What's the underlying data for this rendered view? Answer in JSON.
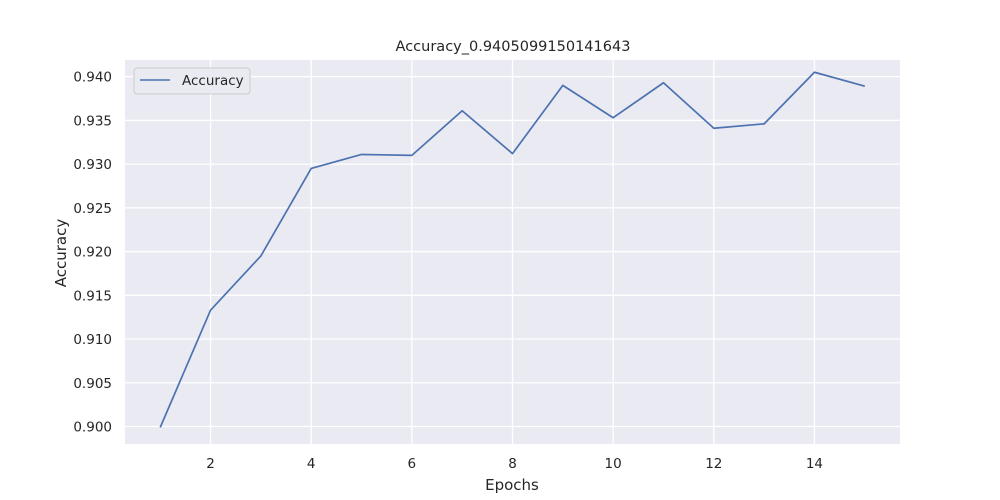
{
  "chart_data": {
    "type": "line",
    "title": "Accuracy_0.9405099150141643",
    "xlabel": "Epochs",
    "ylabel": "Accuracy",
    "xlim": [
      0.3,
      15.7
    ],
    "ylim": [
      0.898,
      0.9419
    ],
    "xticks": [
      2,
      4,
      6,
      8,
      10,
      12,
      14
    ],
    "xtick_labels": [
      "2",
      "4",
      "6",
      "8",
      "10",
      "12",
      "14"
    ],
    "yticks": [
      0.9,
      0.905,
      0.91,
      0.915,
      0.92,
      0.925,
      0.93,
      0.935,
      0.94
    ],
    "ytick_labels": [
      "0.900",
      "0.905",
      "0.910",
      "0.915",
      "0.920",
      "0.925",
      "0.930",
      "0.935",
      "0.940"
    ],
    "grid": true,
    "legend": {
      "position": "top-left"
    },
    "series": [
      {
        "name": "Accuracy",
        "color": "#4c72b0",
        "x": [
          1,
          2,
          3,
          4,
          5,
          6,
          7,
          8,
          9,
          10,
          11,
          12,
          13,
          14,
          15
        ],
        "y": [
          0.8999,
          0.9133,
          0.9195,
          0.9295,
          0.9311,
          0.931,
          0.9361,
          0.9312,
          0.939,
          0.9353,
          0.9393,
          0.9341,
          0.9346,
          0.9405,
          0.9389
        ]
      }
    ],
    "colors": {
      "plot_background": "#eaeaf2",
      "grid": "#ffffff",
      "text": "#262626"
    }
  }
}
